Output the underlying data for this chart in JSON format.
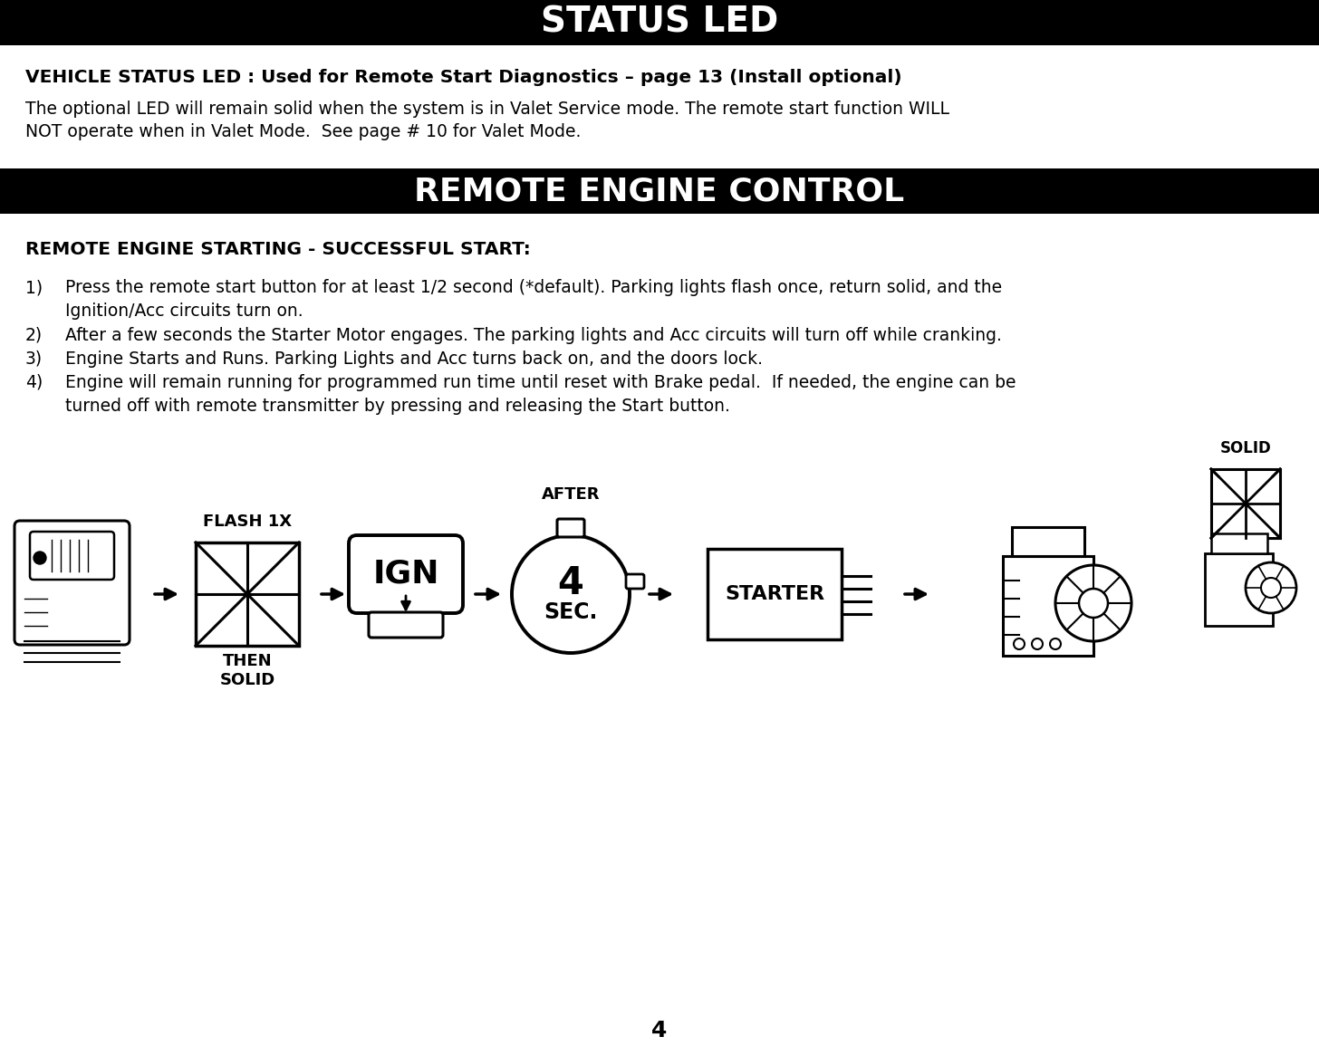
{
  "title_status_led": "STATUS LED",
  "title_bg_color": "#000000",
  "title_text_color": "#ffffff",
  "subtitle_bold": "VEHICLE STATUS LED : Used for Remote Start Diagnostics – page 13 (Install optional)",
  "body_text_line1": "The optional LED will remain solid when the system is in Valet Service mode. The remote start function WILL",
  "body_text_line2": "NOT operate when in Valet Mode.  See page # 10 for Valet Mode.",
  "title2": "REMOTE ENGINE CONTROL",
  "section_heading": "REMOTE ENGINE STARTING - SUCCESSFUL START:",
  "list_item1_num": "1)",
  "list_item1": "Press the remote start button for at least 1/2 second (*default). Parking lights flash once, return solid, and the",
  "list_item1b": "Ignition/Acc circuits turn on.",
  "list_item2_num": "2)",
  "list_item2": "After a few seconds the Starter Motor engages. The parking lights and Acc circuits will turn off while cranking.",
  "list_item3_num": "3)",
  "list_item3": "Engine Starts and Runs. Parking Lights and Acc turns back on, and the doors lock.",
  "list_item4_num": "4)",
  "list_item4": "Engine will remain running for programmed run time until reset with Brake pedal.  If needed, the engine can be",
  "list_item4b": "turned off with remote transmitter by pressing and releasing the Start button.",
  "diagram_flash_label": "FLASH 1X",
  "diagram_then_solid": "THEN\nSOLID",
  "diagram_after": "AFTER",
  "diagram_solid": "SOLID",
  "diagram_ign_text": "IGN",
  "diagram_4": "4",
  "diagram_sec": "SEC.",
  "diagram_starter_text": "STARTER",
  "page_number": "4",
  "bg_color": "#ffffff",
  "text_color": "#000000"
}
